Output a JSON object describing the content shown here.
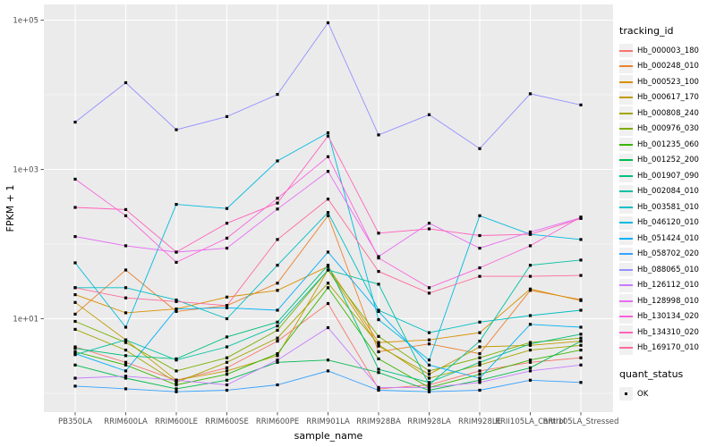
{
  "figure": {
    "background": "#FFFFFF",
    "panel_background": "#EBEBEB",
    "gridline_color": "#FFFFFF",
    "tick_color": "#333333",
    "tick_label_color": "#4D4D4D"
  },
  "chart_data": {
    "type": "line",
    "title": "",
    "xlabel": "sample_name",
    "ylabel": "FPKM + 1",
    "y_scale": "log10",
    "y_ticks": [
      "1e+01",
      "1e+03",
      "1e+05"
    ],
    "y_tick_values": [
      10,
      1000,
      100000
    ],
    "y_minor_values": [
      1,
      100,
      10000
    ],
    "ylim_log10": [
      -0.25,
      5.21
    ],
    "legend_position": "right",
    "grid": true,
    "point_shape": "filled-square",
    "point_color": "#000000",
    "categories": [
      "PB350LA",
      "RRIM600LA",
      "RRIM600LE",
      "RRIM600SE",
      "RRIM600PE",
      "RRIM901LA",
      "RRIM928BA",
      "RRIM928LA",
      "RRIM928LE",
      "RRII105LA_Control",
      "RRII105LA_Stressed"
    ],
    "series": [
      {
        "name": "Hb_000003_180",
        "color": "#F8766D",
        "values": [
          4.2,
          2.6,
          1.5,
          2.2,
          5.0,
          16,
          1.15,
          1.3,
          2.0,
          2.6,
          3.0
        ]
      },
      {
        "name": "Hb_000248_010",
        "color": "#EA8331",
        "values": [
          11.5,
          45,
          12.5,
          15,
          30,
          240,
          3.6,
          4.6,
          3.4,
          24,
          18
        ]
      },
      {
        "name": "Hb_000523_100",
        "color": "#D89000",
        "values": [
          21,
          12,
          13.5,
          19.5,
          24,
          50,
          4.8,
          5.2,
          6.5,
          25,
          17.5
        ]
      },
      {
        "name": "Hb_000617_170",
        "color": "#C09B00",
        "values": [
          16.5,
          5.2,
          1.5,
          2.0,
          3.2,
          45,
          4.3,
          1.8,
          4.2,
          4.4,
          5.0
        ]
      },
      {
        "name": "Hb_000808_240",
        "color": "#A3A500",
        "values": [
          7.2,
          3.8,
          1.4,
          2.6,
          5.5,
          30,
          4.5,
          1.6,
          2.4,
          3.8,
          4.4
        ]
      },
      {
        "name": "Hb_000976_030",
        "color": "#7CAE00",
        "values": [
          9.2,
          4.8,
          2.0,
          3.0,
          7.0,
          45,
          5.8,
          2.0,
          3.0,
          4.8,
          5.5
        ]
      },
      {
        "name": "Hb_001235_060",
        "color": "#39B600",
        "values": [
          3.6,
          2.4,
          1.3,
          1.8,
          3.4,
          26,
          2.9,
          1.2,
          1.8,
          2.8,
          3.8
        ]
      },
      {
        "name": "Hb_001252_200",
        "color": "#00BB4E",
        "values": [
          2.4,
          1.6,
          1.15,
          1.5,
          2.6,
          2.8,
          1.9,
          1.1,
          1.5,
          2.2,
          5.0
        ]
      },
      {
        "name": "Hb_001907_090",
        "color": "#00BF7D",
        "values": [
          4.0,
          3.2,
          2.9,
          5.7,
          9.0,
          52,
          2.1,
          1.4,
          2.6,
          4.6,
          6.2
        ]
      },
      {
        "name": "Hb_002084_010",
        "color": "#00C1A3",
        "values": [
          3.3,
          5.2,
          2.8,
          4.2,
          8.0,
          45,
          29,
          1.3,
          5.0,
          52,
          61
        ]
      },
      {
        "name": "Hb_003581_010",
        "color": "#00BFC4",
        "values": [
          26,
          26,
          17.8,
          10,
          52,
          265,
          13,
          6.5,
          9.0,
          11,
          13
        ]
      },
      {
        "name": "Hb_046120_010",
        "color": "#00BAE0",
        "values": [
          56,
          7.7,
          340,
          300,
          1300,
          3100,
          9.7,
          2.8,
          240,
          135,
          115
        ]
      },
      {
        "name": "Hb_051424_010",
        "color": "#00B0F6",
        "values": [
          3.4,
          2.0,
          13.5,
          14,
          13,
          78,
          12.5,
          2.4,
          1.6,
          8.4,
          7.7
        ]
      },
      {
        "name": "Hb_058702_020",
        "color": "#35A2FF",
        "values": [
          1.25,
          1.15,
          1.05,
          1.1,
          1.3,
          2.0,
          1.1,
          1.05,
          1.1,
          1.5,
          1.4
        ]
      },
      {
        "name": "Hb_088065_010",
        "color": "#9590FF",
        "values": [
          4300,
          14500,
          3400,
          5100,
          10100,
          92000,
          2900,
          5400,
          1900,
          10300,
          7300
        ]
      },
      {
        "name": "Hb_126112_010",
        "color": "#C77CFF",
        "values": [
          1.6,
          1.7,
          1.5,
          1.3,
          2.8,
          7.6,
          1.2,
          1.2,
          1.4,
          2.0,
          2.4
        ]
      },
      {
        "name": "Hb_128998_010",
        "color": "#E76BF3",
        "values": [
          126,
          95,
          78,
          88,
          295,
          940,
          68,
          190,
          88,
          145,
          225
        ]
      },
      {
        "name": "Hb_130134_020",
        "color": "#FA62DB",
        "values": [
          740,
          240,
          57,
          120,
          410,
          1480,
          65,
          26,
          48,
          95,
          230
        ]
      },
      {
        "name": "Hb_134310_020",
        "color": "#FF62BC",
        "values": [
          310,
          290,
          78,
          190,
          355,
          2800,
          140,
          160,
          130,
          135,
          220
        ]
      },
      {
        "name": "Hb_169170_010",
        "color": "#FF6A98",
        "values": [
          26,
          19,
          17,
          15,
          115,
          400,
          43,
          22,
          37,
          37,
          38
        ]
      }
    ]
  },
  "legend": {
    "tracking_title": "tracking_id",
    "quant_title": "quant_status",
    "quant_items": [
      {
        "label": "OK",
        "marker": "black-square"
      }
    ],
    "key_fill": "#F0F0F0"
  }
}
